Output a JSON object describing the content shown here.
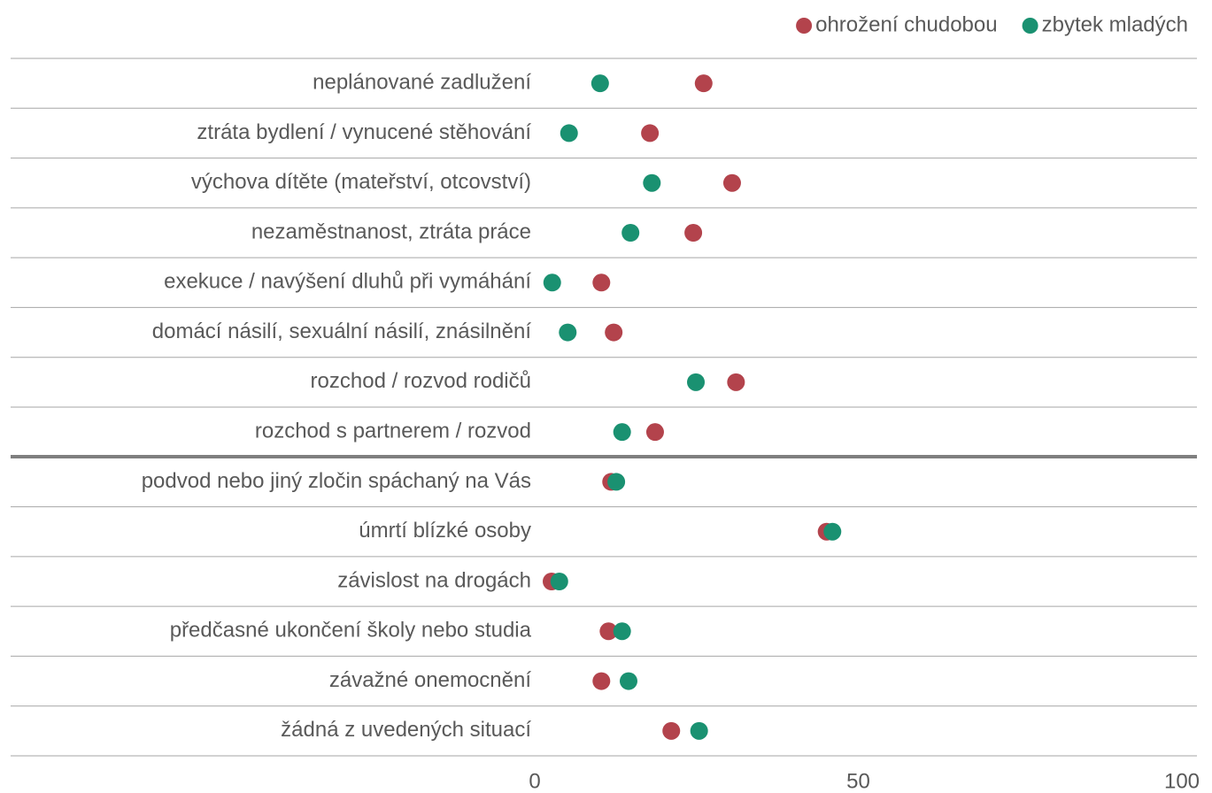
{
  "chart_data": {
    "type": "dot",
    "categories": [
      "neplánované zadlužení",
      "ztráta bydlení / vynucené stěhování",
      "výchova dítěte (mateřství, otcovství)",
      "nezaměstnanost, ztráta práce",
      "exekuce / navýšení dluhů při vymáhání",
      "domácí násilí, sexuální násilí, znásilnění",
      "rozchod / rozvod rodičů",
      "rozchod s partnerem / rozvod",
      "podvod nebo jiný zločin spáchaný na Vás",
      "úmrtí blízké osoby",
      "závislost na drogách",
      "předčasné ukončení školy nebo studia",
      "závažné onemocnění",
      "žádná z uvedených situací"
    ],
    "series": [
      {
        "name": "ohrožení chudobou",
        "color": "#b3434c",
        "values": [
          26.1,
          17.8,
          30.5,
          24.5,
          10.3,
          12.2,
          31.1,
          18.6,
          11.8,
          45.1,
          2.6,
          11.4,
          10.3,
          21.1
        ]
      },
      {
        "name": "zbytek mladých",
        "color": "#1a9171",
        "values": [
          10.1,
          5.3,
          18.1,
          14.8,
          2.7,
          5.1,
          24.9,
          13.5,
          12.6,
          46.0,
          3.8,
          13.5,
          14.5,
          25.4
        ]
      }
    ],
    "xlim": [
      0,
      100
    ],
    "xticks": [
      0,
      50,
      100
    ],
    "legend": "top-right"
  }
}
